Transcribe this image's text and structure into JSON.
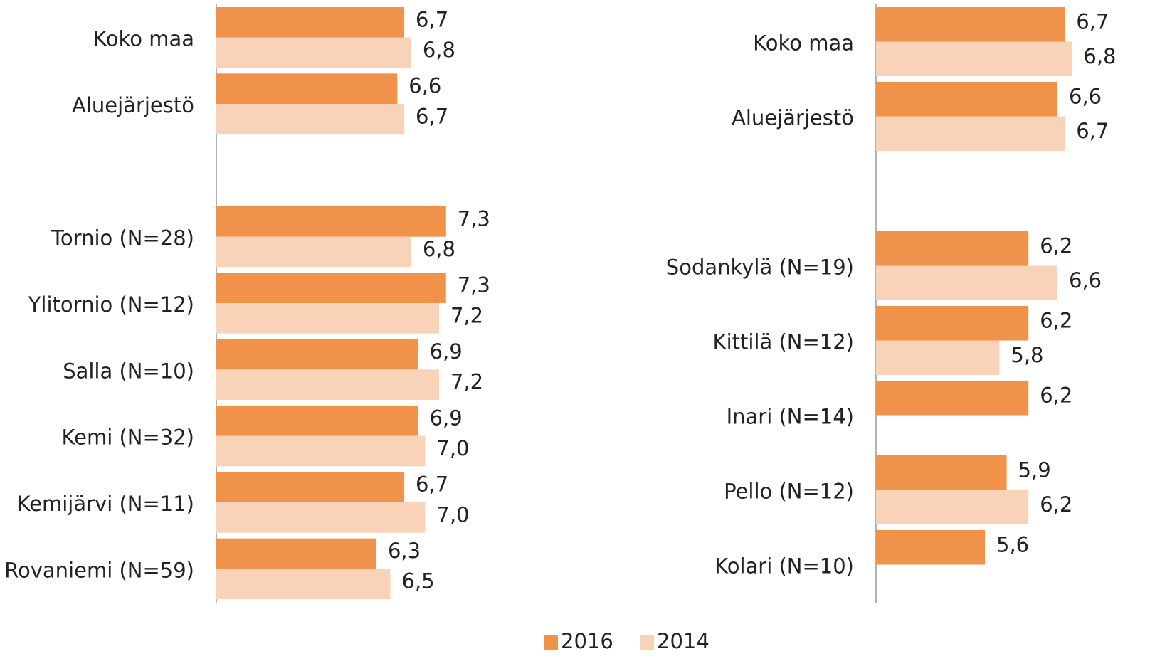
{
  "chart_data": [
    {
      "type": "bar",
      "orientation": "horizontal",
      "categories": [
        "Koko maa",
        "Aluejärjestö",
        null,
        "Tornio (N=28)",
        "Ylitornio (N=12)",
        "Salla (N=10)",
        "Kemi (N=32)",
        "Kemijärvi (N=11)",
        "Rovaniemi (N=59)"
      ],
      "series": [
        {
          "name": "2016",
          "color": "#F0924A",
          "values": [
            6.7,
            6.6,
            null,
            7.3,
            7.3,
            6.9,
            6.9,
            6.7,
            6.3
          ],
          "value_labels": [
            "6,7",
            "6,6",
            null,
            "7,3",
            "7,3",
            "6,9",
            "6,9",
            "6,7",
            "6,3"
          ]
        },
        {
          "name": "2014",
          "color": "#F8D3B7",
          "values": [
            6.8,
            6.7,
            null,
            6.8,
            7.2,
            7.2,
            7.0,
            7.0,
            6.5
          ],
          "value_labels": [
            "6,8",
            "6,7",
            null,
            "6,8",
            "7,2",
            "7,2",
            "7,0",
            "7,0",
            "6,5"
          ]
        }
      ],
      "xlim": [
        4,
        8
      ],
      "grid": false
    },
    {
      "type": "bar",
      "orientation": "horizontal",
      "categories": [
        "Koko maa",
        "Aluejärjestö",
        null,
        "Sodankylä (N=19)",
        "Kittilä (N=12)",
        "Inari (N=14)",
        "Pello (N=12)",
        "Kolari (N=10)"
      ],
      "series": [
        {
          "name": "2016",
          "color": "#F0924A",
          "values": [
            6.7,
            6.6,
            null,
            6.2,
            6.2,
            6.2,
            5.9,
            5.6
          ],
          "value_labels": [
            "6,7",
            "6,6",
            null,
            "6,2",
            "6,2",
            "6,2",
            "5,9",
            "5,6"
          ]
        },
        {
          "name": "2014",
          "color": "#F8D3B7",
          "values": [
            6.8,
            6.7,
            null,
            6.6,
            5.8,
            null,
            6.2,
            null
          ],
          "value_labels": [
            "6,8",
            "6,7",
            null,
            "6,6",
            "5,8",
            null,
            "6,2",
            null
          ]
        }
      ],
      "xlim": [
        4.1,
        8
      ],
      "grid": false
    }
  ]
}
